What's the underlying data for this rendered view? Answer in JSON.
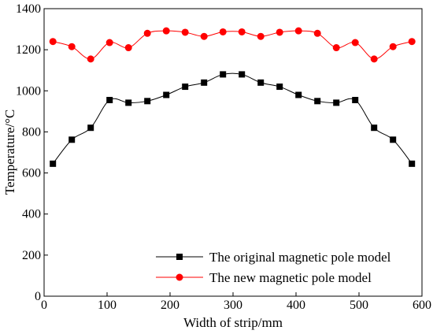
{
  "chart_data": {
    "type": "line",
    "xlabel": "Width of strip/mm",
    "ylabel": "Temperature/°C",
    "xlim": [
      0,
      600
    ],
    "ylim": [
      0,
      1400
    ],
    "x_ticks": [
      0,
      100,
      200,
      300,
      400,
      500,
      600
    ],
    "y_ticks": [
      0,
      200,
      400,
      600,
      800,
      1000,
      1200,
      1400
    ],
    "grid": false,
    "legend_position": "bottom-right",
    "series": [
      {
        "name": "The original magnetic pole model",
        "color": "#000000",
        "marker": "square",
        "x": [
          14,
          44,
          74,
          104,
          134,
          164,
          194,
          224,
          254,
          284,
          314,
          344,
          374,
          404,
          434,
          464,
          494,
          524,
          554,
          584
        ],
        "y": [
          645,
          762,
          820,
          955,
          942,
          950,
          980,
          1020,
          1040,
          1080,
          1080,
          1040,
          1020,
          980,
          950,
          942,
          955,
          820,
          762,
          645
        ]
      },
      {
        "name": "The new magnetic pole model",
        "color": "#ff0000",
        "marker": "circle",
        "x": [
          14,
          44,
          74,
          104,
          134,
          164,
          194,
          224,
          254,
          284,
          314,
          344,
          374,
          404,
          434,
          464,
          494,
          524,
          554,
          584
        ],
        "y": [
          1240,
          1215,
          1155,
          1235,
          1210,
          1280,
          1292,
          1285,
          1265,
          1287,
          1287,
          1265,
          1285,
          1292,
          1280,
          1210,
          1235,
          1155,
          1215,
          1240
        ]
      }
    ]
  }
}
